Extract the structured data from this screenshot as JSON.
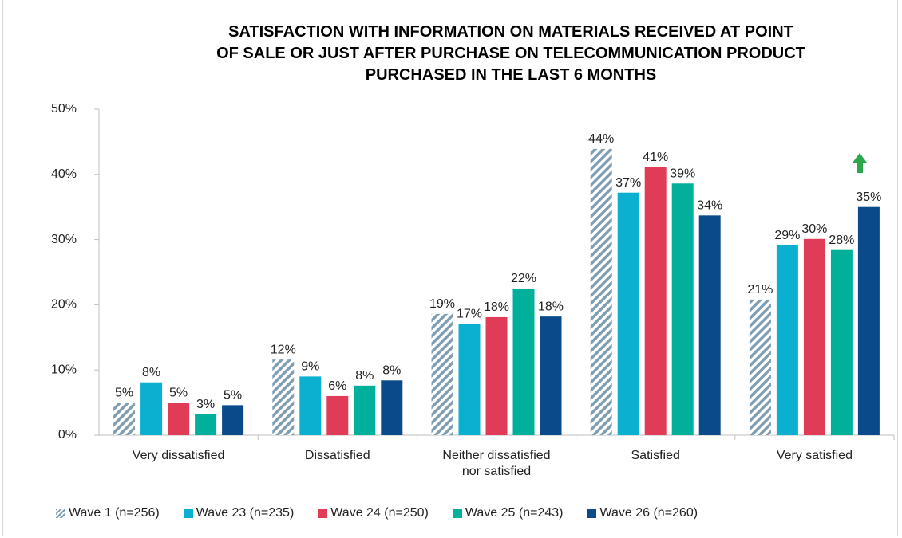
{
  "chart_data": {
    "type": "bar",
    "title": "SATISFACTION WITH INFORMATION ON MATERIALS RECEIVED AT POINT\nOF SALE OR JUST AFTER PURCHASE ON TELECOMMUNICATION PRODUCT\nPURCHASED IN THE LAST 6 MONTHS",
    "categories": [
      "Very dissatisfied",
      "Dissatisfied",
      "Neither dissatisfied\nnor satisfied",
      "Satisfied",
      "Very satisfied"
    ],
    "series": [
      {
        "name": "Wave 1 (n=256)",
        "color": "#7f9db3",
        "hatched": true,
        "values": [
          5.0,
          11.6,
          18.6,
          43.9,
          20.8
        ],
        "value_labels": [
          "5%",
          "12%",
          "19%",
          "44%",
          "21%"
        ]
      },
      {
        "name": "Wave 23 (n=235)",
        "color": "#0bb0d0",
        "values": [
          8.1,
          9.0,
          17.1,
          37.2,
          29.1
        ],
        "value_labels": [
          "8%",
          "9%",
          "17%",
          "37%",
          "29%"
        ]
      },
      {
        "name": "Wave 24 (n=250)",
        "color": "#e03c58",
        "values": [
          5.0,
          6.0,
          18.1,
          41.1,
          30.1
        ],
        "value_labels": [
          "5%",
          "6%",
          "18%",
          "41%",
          "30%"
        ]
      },
      {
        "name": "Wave 25 (n=243)",
        "color": "#00b09a",
        "values": [
          3.2,
          7.6,
          22.5,
          38.6,
          28.4
        ],
        "value_labels": [
          "3%",
          "8%",
          "22%",
          "39%",
          "28%"
        ]
      },
      {
        "name": "Wave 26 (n=260)",
        "color": "#0b4a8a",
        "values": [
          4.6,
          8.4,
          18.2,
          33.7,
          35.0
        ],
        "value_labels": [
          "5%",
          "8%",
          "18%",
          "34%",
          "35%"
        ]
      }
    ],
    "ylim": [
      0,
      50
    ],
    "yticks": [
      {
        "value": 0,
        "label": "0%"
      },
      {
        "value": 10,
        "label": "10%"
      },
      {
        "value": 20,
        "label": "20%"
      },
      {
        "value": 30,
        "label": "30%"
      },
      {
        "value": 40,
        "label": "40%"
      },
      {
        "value": 50,
        "label": "50%"
      }
    ],
    "grid": false
  }
}
